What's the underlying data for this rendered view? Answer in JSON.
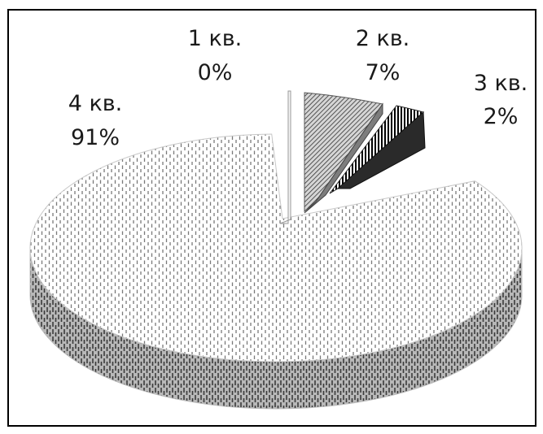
{
  "chart_data": {
    "type": "pie",
    "title": "",
    "slices": [
      {
        "label": "1 кв.",
        "pct_label": "0%",
        "value": 0
      },
      {
        "label": "2 кв.",
        "pct_label": "7%",
        "value": 7
      },
      {
        "label": "3 кв.",
        "pct_label": "2%",
        "value": 2
      },
      {
        "label": "4 кв.",
        "pct_label": "91%",
        "value": 91
      }
    ],
    "style": "3d-exploded",
    "legend": "none",
    "colors": {
      "ink": "#1a1a1a",
      "background": "#ffffff"
    }
  }
}
